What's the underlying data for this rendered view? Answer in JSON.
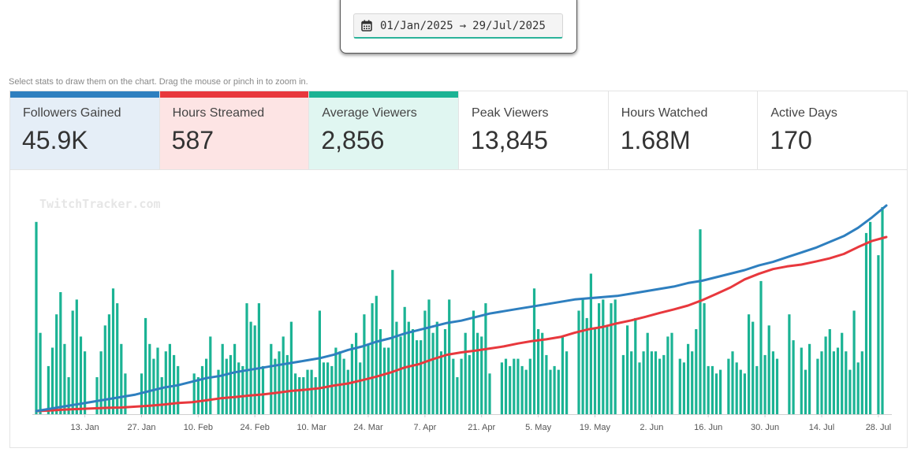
{
  "date_range": {
    "start": "01/Jan/2025",
    "arrow": "→",
    "end": "29/Jul/2025",
    "icon": "calendar-icon"
  },
  "hint": "Select stats to draw them on the chart. Drag the mouse or pinch in to zoom in.",
  "stats": [
    {
      "label": "Followers Gained",
      "value": "45.9K",
      "active": true,
      "color": "#2e7fbf",
      "bg": "#e5eef7"
    },
    {
      "label": "Hours Streamed",
      "value": "587",
      "active": true,
      "color": "#e8383d",
      "bg": "#fde4e4"
    },
    {
      "label": "Average Viewers",
      "value": "2,856",
      "active": true,
      "color": "#1bb394",
      "bg": "#e0f6f1"
    },
    {
      "label": "Peak Viewers",
      "value": "13,845",
      "active": false
    },
    {
      "label": "Hours Watched",
      "value": "1.68M",
      "active": false
    },
    {
      "label": "Active Days",
      "value": "170",
      "active": false
    }
  ],
  "chart_data": {
    "type": "bar",
    "watermark": "TwitchTracker.com",
    "x_tick_labels": [
      "13. Jan",
      "27. Jan",
      "10. Feb",
      "24. Feb",
      "10. Mar",
      "24. Mar",
      "7. Apr",
      "21. Apr",
      "5. May",
      "19. May",
      "2. Jun",
      "16. Jun",
      "30. Jun",
      "14. Jul",
      "28. Jul"
    ],
    "x_start": "01/Jan/2025",
    "x_end": "29/Jul/2025",
    "series": [
      {
        "label": "Average Viewers",
        "type": "bar",
        "color": "#1bb394",
        "values": [
          5200,
          2200,
          0,
          1300,
          1800,
          2700,
          3300,
          1900,
          1000,
          2800,
          3100,
          2100,
          1700,
          0,
          0,
          1000,
          1700,
          2400,
          2700,
          3400,
          3000,
          1900,
          1100,
          0,
          0,
          0,
          1100,
          2600,
          1900,
          1500,
          1800,
          1000,
          1700,
          1900,
          1600,
          1300,
          0,
          0,
          0,
          1100,
          1000,
          1300,
          1500,
          2100,
          0,
          1200,
          1900,
          1500,
          1600,
          1900,
          1400,
          1300,
          3000,
          2500,
          2400,
          3000,
          1300,
          0,
          1900,
          1500,
          1700,
          2100,
          1600,
          2500,
          1100,
          1000,
          1000,
          1200,
          1200,
          1000,
          2800,
          1400,
          1400,
          1300,
          1800,
          1700,
          1500,
          1200,
          1900,
          2200,
          1400,
          2700,
          1900,
          3000,
          3200,
          2300,
          1800,
          1800,
          3900,
          2500,
          2100,
          2900,
          2500,
          2300,
          2000,
          2000,
          2800,
          3100,
          2200,
          2500,
          1700,
          2300,
          3100,
          1500,
          1000,
          1500,
          2200,
          1600,
          2800,
          2200,
          2100,
          3000,
          1100,
          0,
          0,
          1400,
          1500,
          1300,
          1500,
          1500,
          1300,
          1200,
          1500,
          3400,
          2300,
          2200,
          1600,
          1200,
          1300,
          1200,
          2100,
          1700,
          0,
          0,
          2800,
          3100,
          2600,
          3800,
          2300,
          3000,
          3100,
          2400,
          3000,
          3100,
          0,
          1600,
          2400,
          1700,
          2600,
          1400,
          1700,
          2200,
          1700,
          1700,
          1500,
          1600,
          2100,
          2200,
          0,
          1500,
          1400,
          1900,
          1700,
          2300,
          5000,
          3000,
          1300,
          1300,
          1100,
          1200,
          0,
          1500,
          1700,
          1400,
          1200,
          1100,
          2700,
          2500,
          1300,
          3600,
          1600,
          2400,
          1700,
          1500,
          0,
          0,
          2700,
          2000,
          0,
          1800,
          1200,
          1900,
          0,
          1500,
          1700,
          2100,
          2300,
          1700,
          1800,
          2200,
          1700,
          1200,
          2800,
          1400,
          1700,
          4900,
          5200,
          0,
          4300,
          5600
        ]
      },
      {
        "label": "Hours Streamed",
        "type": "line",
        "color": "#e8383d",
        "values": [
          0,
          2,
          5,
          7,
          9,
          11,
          12,
          15,
          18,
          22,
          27,
          30,
          36,
          43,
          47,
          52,
          56,
          62,
          68,
          72,
          77,
          86,
          93,
          104,
          116,
          130,
          147,
          158,
          175,
          190,
          198,
          204,
          211,
          218,
          228,
          236,
          242,
          250,
          264,
          276,
          284,
          296,
          306,
          318,
          331,
          343,
          356,
          374,
          395,
          417,
          444,
          463,
          479,
          488,
          494,
          504,
          515,
          530,
          553,
          574,
          587
        ]
      },
      {
        "label": "Followers Gained",
        "type": "line",
        "color": "#2e7fbf",
        "values": [
          0,
          2,
          4,
          6,
          8,
          10,
          12,
          14,
          17,
          20,
          22,
          25,
          28,
          30,
          33,
          35,
          37,
          39,
          41,
          43,
          45,
          48,
          52,
          55,
          59,
          62,
          66,
          69,
          72,
          75,
          77,
          80,
          83,
          85,
          87,
          89,
          91,
          93,
          95,
          96,
          97,
          98,
          100,
          102,
          104,
          106,
          109,
          111,
          114,
          117,
          120,
          124,
          127,
          131,
          135,
          139,
          144,
          149,
          156,
          165,
          175
        ]
      }
    ]
  }
}
